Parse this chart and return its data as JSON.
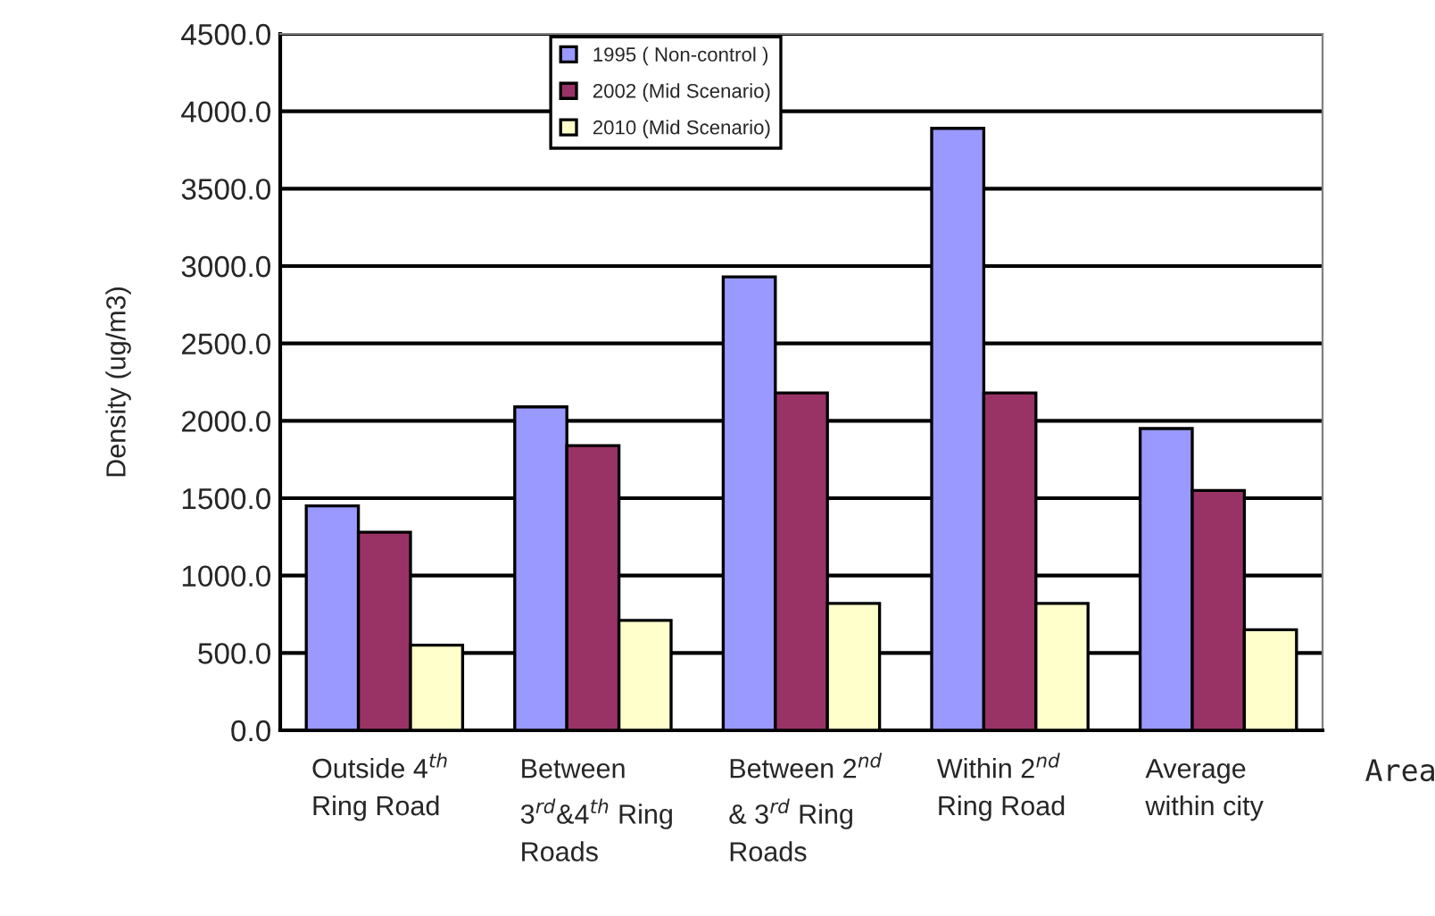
{
  "chart_data": {
    "type": "bar",
    "ylabel": "Density (ug/m3)",
    "xlabel": "Area",
    "categories": [
      "Outside 4$^{th}$\nRing Road",
      "Between\n3$^{rd}$&4$^{th}$ Ring\nRoads",
      "Between 2$^{nd}$\n& 3$^{rd}$ Ring\nRoads",
      "Within 2$^{nd}$\nRing Road",
      "Average\nwithin city"
    ],
    "series": [
      {
        "name": "1995 ( Non-control )",
        "color": "#9999ff",
        "values": [
          1450,
          2090,
          2930,
          3890,
          1950
        ]
      },
      {
        "name": "2002 (Mid Scenario)",
        "color": "#993366",
        "values": [
          1280,
          1840,
          2180,
          2180,
          1550
        ]
      },
      {
        "name": "2010 (Mid Scenario)",
        "color": "#ffffcc",
        "values": [
          550,
          710,
          820,
          820,
          650
        ]
      }
    ],
    "ylim": [
      0,
      4500
    ],
    "yticks": [
      {
        "value": 0,
        "label": "0.0"
      },
      {
        "value": 500,
        "label": "500.0"
      },
      {
        "value": 1000,
        "label": "1000.0"
      },
      {
        "value": 1500,
        "label": "1500.0"
      },
      {
        "value": 2000,
        "label": "2000.0"
      },
      {
        "value": 2500,
        "label": "2500.0"
      },
      {
        "value": 3000,
        "label": "3000.0"
      },
      {
        "value": 3500,
        "label": "3500.0"
      },
      {
        "value": 4000,
        "label": "4000.0"
      },
      {
        "value": 4500,
        "label": "4500.0"
      }
    ],
    "grid": "y",
    "legend": "top"
  }
}
